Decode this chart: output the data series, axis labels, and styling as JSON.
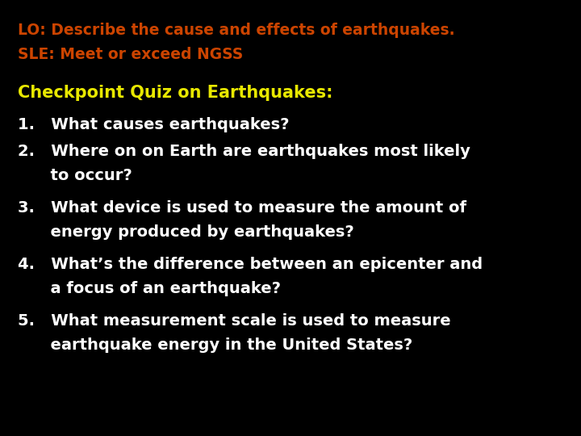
{
  "background_color": "#000000",
  "lo_line1": "LO: Describe the cause and effects of earthquakes.",
  "lo_line2": "SLE: Meet or exceed NGSS",
  "lo_color": "#cc4400",
  "checkpoint_title": "Checkpoint Quiz on Earthquakes:",
  "checkpoint_color": "#e8e800",
  "questions": [
    [
      "1.   What causes earthquakes?"
    ],
    [
      "2.   Where on on Earth are earthquakes most likely",
      "      to occur?"
    ],
    [
      "3.   What device is used to measure the amount of",
      "      energy produced by earthquakes?"
    ],
    [
      "4.   What’s the difference between an epicenter and",
      "      a focus of an earthquake?"
    ],
    [
      "5.   What measurement scale is used to measure",
      "      earthquake energy in the United States?"
    ]
  ],
  "question_color": "#ffffff",
  "font_size_lo": 13.5,
  "font_size_checkpoint": 15,
  "font_size_questions": 14,
  "font_family": "DejaVu Sans"
}
